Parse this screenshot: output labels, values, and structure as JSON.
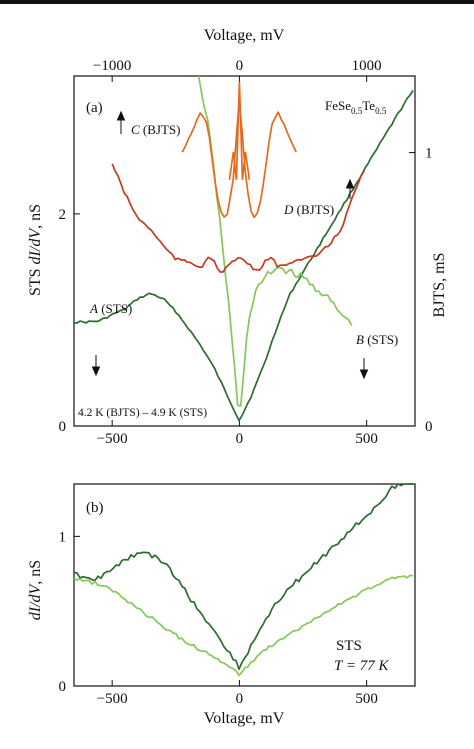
{
  "chart_data": [
    {
      "type": "line",
      "panel_label": "(a)",
      "material": "FeSe0.5Te0.5",
      "x_bottom": {
        "label": "",
        "range": [
          -650,
          690
        ],
        "ticks": [
          -500,
          0,
          500
        ],
        "tick_labels": [
          "−500",
          "0",
          "500"
        ]
      },
      "x_top": {
        "label": "Voltage, mV",
        "range": [
          -1300,
          1380
        ],
        "ticks": [
          -1000,
          0,
          1000
        ],
        "tick_labels": [
          "−1000",
          "0",
          "1000"
        ]
      },
      "y_left": {
        "label_parts": [
          "STS ",
          "dI/dV",
          ", nS"
        ],
        "range": [
          0,
          3.3
        ],
        "ticks": [
          0,
          2
        ],
        "tick_labels": [
          "0",
          "2"
        ]
      },
      "y_right": {
        "label": "BJTS, mS",
        "range": [
          0,
          1.28
        ],
        "ticks": [
          0,
          1
        ],
        "tick_labels": [
          "0",
          "1"
        ]
      },
      "annotation": "4.2 K (BJTS) – 4.9 K (STS)",
      "series": [
        {
          "name": "A (STS)",
          "axis": "left-bottom",
          "color": "#2e6b2e",
          "points": [
            [
              -650,
              0.98
            ],
            [
              -600,
              0.98
            ],
            [
              -550,
              0.99
            ],
            [
              -500,
              1.05
            ],
            [
              -450,
              1.1
            ],
            [
              -400,
              1.2
            ],
            [
              -350,
              1.25
            ],
            [
              -300,
              1.2
            ],
            [
              -250,
              1.08
            ],
            [
              -200,
              0.92
            ],
            [
              -150,
              0.75
            ],
            [
              -100,
              0.55
            ],
            [
              -50,
              0.3
            ],
            [
              0,
              0.05
            ],
            [
              50,
              0.3
            ],
            [
              100,
              0.6
            ],
            [
              150,
              0.95
            ],
            [
              200,
              1.25
            ],
            [
              250,
              1.45
            ],
            [
              300,
              1.65
            ],
            [
              350,
              1.85
            ],
            [
              400,
              2.05
            ],
            [
              450,
              2.25
            ],
            [
              500,
              2.45
            ],
            [
              550,
              2.65
            ],
            [
              600,
              2.85
            ],
            [
              650,
              3.05
            ],
            [
              690,
              3.18
            ]
          ]
        },
        {
          "name": "B (STS)",
          "axis": "left-bottom",
          "color": "#86c65a",
          "points": [
            [
              -160,
              3.3
            ],
            [
              -120,
              2.8
            ],
            [
              -80,
              2.0
            ],
            [
              -40,
              1.1
            ],
            [
              0,
              0.02
            ],
            [
              30,
              0.9
            ],
            [
              60,
              1.25
            ],
            [
              100,
              1.4
            ],
            [
              150,
              1.5
            ],
            [
              200,
              1.45
            ],
            [
              250,
              1.4
            ],
            [
              300,
              1.3
            ],
            [
              350,
              1.2
            ],
            [
              400,
              1.05
            ],
            [
              450,
              0.95
            ]
          ]
        },
        {
          "name": "C (BJTS)",
          "axis": "right-top",
          "color": "#e56a1d",
          "points": [
            [
              -450,
              1.0
            ],
            [
              -400,
              1.05
            ],
            [
              -350,
              1.1
            ],
            [
              -300,
              1.15
            ],
            [
              -250,
              1.1
            ],
            [
              -200,
              0.92
            ],
            [
              -150,
              0.78
            ],
            [
              -100,
              0.76
            ],
            [
              -50,
              0.9
            ],
            [
              0,
              1.2
            ],
            [
              50,
              0.9
            ],
            [
              100,
              0.76
            ],
            [
              150,
              0.78
            ],
            [
              200,
              0.92
            ],
            [
              250,
              1.1
            ],
            [
              300,
              1.15
            ],
            [
              350,
              1.1
            ],
            [
              400,
              1.05
            ],
            [
              450,
              1.0
            ]
          ]
        },
        {
          "name": "D (BJTS)",
          "axis": "right-top",
          "color": "#c33b21",
          "points": [
            [
              -1000,
              0.96
            ],
            [
              -900,
              0.85
            ],
            [
              -800,
              0.76
            ],
            [
              -700,
              0.72
            ],
            [
              -600,
              0.66
            ],
            [
              -500,
              0.61
            ],
            [
              -400,
              0.6
            ],
            [
              -300,
              0.58
            ],
            [
              -250,
              0.62
            ],
            [
              -200,
              0.6
            ],
            [
              -150,
              0.56
            ],
            [
              -100,
              0.58
            ],
            [
              -50,
              0.6
            ],
            [
              0,
              0.62
            ],
            [
              50,
              0.6
            ],
            [
              100,
              0.58
            ],
            [
              150,
              0.56
            ],
            [
              200,
              0.6
            ],
            [
              250,
              0.62
            ],
            [
              300,
              0.58
            ],
            [
              400,
              0.6
            ],
            [
              500,
              0.61
            ],
            [
              600,
              0.62
            ],
            [
              700,
              0.66
            ],
            [
              800,
              0.72
            ],
            [
              900,
              0.85
            ],
            [
              1000,
              0.96
            ]
          ]
        }
      ],
      "labels": [
        {
          "text": "A",
          "suffix": " (STS)"
        },
        {
          "text": "B",
          "suffix": " (STS)"
        },
        {
          "text": "C",
          "suffix": " (BJTS)"
        },
        {
          "text": "D",
          "suffix": " (BJTS)"
        }
      ]
    },
    {
      "type": "line",
      "panel_label": "(b)",
      "x": {
        "label": "Voltage, mV",
        "range": [
          -650,
          690
        ],
        "ticks": [
          -500,
          0,
          500
        ],
        "tick_labels": [
          "−500",
          "0",
          "500"
        ]
      },
      "y": {
        "label_parts": [
          "dI/dV",
          ", nS"
        ],
        "range": [
          0,
          1.35
        ],
        "ticks": [
          0,
          1
        ],
        "tick_labels": [
          "0",
          "1"
        ]
      },
      "legend_text": [
        "STS",
        "T = 77 K"
      ],
      "series": [
        {
          "color": "#2e6b2e",
          "points": [
            [
              -650,
              0.75
            ],
            [
              -600,
              0.72
            ],
            [
              -550,
              0.72
            ],
            [
              -500,
              0.78
            ],
            [
              -450,
              0.85
            ],
            [
              -400,
              0.88
            ],
            [
              -350,
              0.88
            ],
            [
              -300,
              0.83
            ],
            [
              -250,
              0.73
            ],
            [
              -200,
              0.6
            ],
            [
              -150,
              0.48
            ],
            [
              -100,
              0.37
            ],
            [
              -50,
              0.25
            ],
            [
              0,
              0.12
            ],
            [
              50,
              0.28
            ],
            [
              100,
              0.44
            ],
            [
              150,
              0.56
            ],
            [
              200,
              0.66
            ],
            [
              250,
              0.74
            ],
            [
              300,
              0.82
            ],
            [
              350,
              0.9
            ],
            [
              400,
              0.98
            ],
            [
              450,
              1.06
            ],
            [
              500,
              1.14
            ],
            [
              550,
              1.22
            ],
            [
              600,
              1.32
            ],
            [
              690,
              1.4
            ]
          ]
        },
        {
          "color": "#86c65a",
          "points": [
            [
              -650,
              0.72
            ],
            [
              -600,
              0.7
            ],
            [
              -550,
              0.68
            ],
            [
              -500,
              0.64
            ],
            [
              -450,
              0.58
            ],
            [
              -400,
              0.52
            ],
            [
              -350,
              0.46
            ],
            [
              -300,
              0.4
            ],
            [
              -250,
              0.34
            ],
            [
              -200,
              0.28
            ],
            [
              -150,
              0.24
            ],
            [
              -100,
              0.2
            ],
            [
              -50,
              0.14
            ],
            [
              0,
              0.08
            ],
            [
              50,
              0.16
            ],
            [
              100,
              0.24
            ],
            [
              150,
              0.3
            ],
            [
              200,
              0.35
            ],
            [
              250,
              0.4
            ],
            [
              300,
              0.45
            ],
            [
              350,
              0.5
            ],
            [
              400,
              0.55
            ],
            [
              450,
              0.6
            ],
            [
              500,
              0.64
            ],
            [
              550,
              0.68
            ],
            [
              600,
              0.72
            ],
            [
              690,
              0.74
            ]
          ]
        }
      ]
    }
  ]
}
